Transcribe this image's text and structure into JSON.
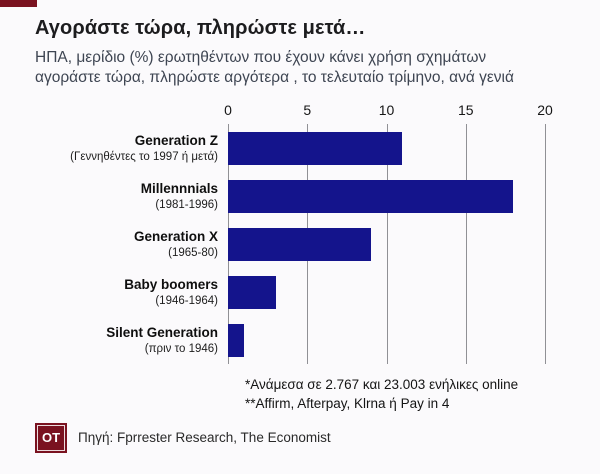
{
  "colors": {
    "accent": "#7a1220",
    "bar": "#14148c"
  },
  "header": {
    "title": "Αγοράστε τώρα, πληρώστε μετά…",
    "subtitle": "ΗΠΑ, μερίδιο (%) ερωτηθέντων που έχουν κάνει χρήση σχημάτων αγοράστε τώρα, πληρώστε αργότερα , το τελευταίο τρίμηνο, ανά γενιά"
  },
  "chart_data": {
    "type": "bar",
    "orientation": "horizontal",
    "categories": [
      "Generation Z",
      "Millennnials",
      "Generation X",
      "Baby boomers",
      "Silent Generation"
    ],
    "sublabels": [
      "(Γεννηθέντες το 1997 ή μετά)",
      "(1981-1996)",
      "(1965-80)",
      "(1946-1964)",
      "(πριν το 1946)"
    ],
    "values": [
      11,
      18,
      9,
      3,
      1
    ],
    "xlim": [
      0,
      20
    ],
    "xticks": [
      0,
      5,
      10,
      15,
      20
    ],
    "grid": true,
    "bar_color": "#14148c",
    "title": "Αγοράστε τώρα, πληρώστε μετά…",
    "xlabel": "",
    "ylabel": ""
  },
  "footnotes": [
    "*Ανάμεσα σε 2.767 και 23.003 ενήλικες online",
    "**Affirm, Afterpay, Klrna ή Pay in 4"
  ],
  "source": "Πηγή: Fprrester Research, The Economist",
  "logo": {
    "text": "OT"
  }
}
